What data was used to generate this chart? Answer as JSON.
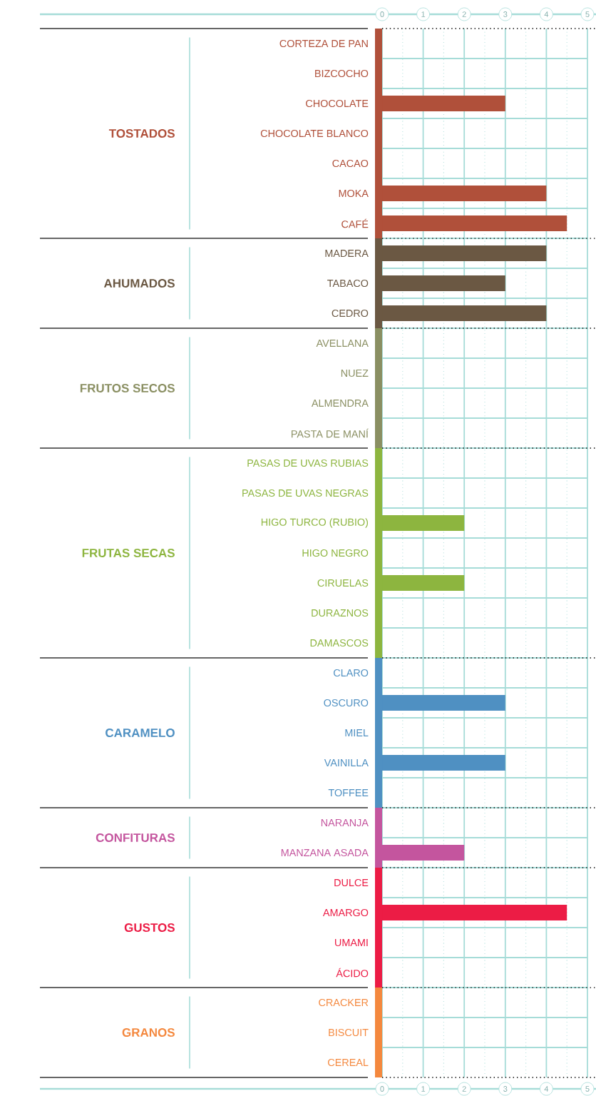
{
  "chart_data": {
    "type": "bar",
    "orientation": "horizontal",
    "categories": [
      "CORTEZA DE PAN",
      "BIZCOCHO",
      "CHOCOLATE",
      "CHOCOLATE BLANCO",
      "CACAO",
      "MOKA",
      "CAFÉ",
      "MADERA",
      "TABACO",
      "CEDRO",
      "AVELLANA",
      "NUEZ",
      "ALMENDRA",
      "PASTA DE MANÍ",
      "PASAS DE UVAS RUBIAS",
      "PASAS DE UVAS NEGRAS",
      "HIGO TURCO (RUBIO)",
      "HIGO NEGRO",
      "CIRUELAS",
      "DURAZNOS",
      "DAMASCOS",
      "CLARO",
      "OSCURO",
      "MIEL",
      "VAINILLA",
      "TOFFEE",
      "NARANJA",
      "MANZANA ASADA",
      "DULCE",
      "AMARGO",
      "UMAMI",
      "ÁCIDO",
      "CRACKER",
      "BISCUIT",
      "CEREAL"
    ],
    "values": [
      0,
      0,
      3,
      0,
      0,
      4,
      4.5,
      4,
      3,
      4,
      0,
      0,
      0,
      0,
      0,
      0,
      2,
      0,
      2,
      0,
      0,
      0,
      3,
      0,
      3,
      0,
      0,
      2,
      0,
      4.5,
      0,
      0,
      0,
      0,
      0
    ],
    "colors": [
      "#b0503a",
      "#b0503a",
      "#b0503a",
      "#b0503a",
      "#b0503a",
      "#b0503a",
      "#b0503a",
      "#6b5843",
      "#6b5843",
      "#6b5843",
      "#8a8f62",
      "#8a8f62",
      "#8a8f62",
      "#8a8f62",
      "#8db53f",
      "#8db53f",
      "#8db53f",
      "#8db53f",
      "#8db53f",
      "#8db53f",
      "#8db53f",
      "#4f90c2",
      "#4f90c2",
      "#4f90c2",
      "#4f90c2",
      "#4f90c2",
      "#c4559e",
      "#c4559e",
      "#ec1c45",
      "#ec1c45",
      "#ec1c45",
      "#ec1c45",
      "#f4883e",
      "#f4883e",
      "#f4883e"
    ],
    "annotations": [
      "TOSTADOS",
      "AHUMADOS",
      "FRUTOS SECOS",
      "FRUTAS SECAS",
      "CARAMELO",
      "CONFITURAS",
      "GUSTOS",
      "GRANOS"
    ],
    "xlim": [
      0,
      5
    ],
    "xticks": [
      0,
      {
        "value": 0.5,
        "label": null
      },
      1,
      {
        "value": 1.5,
        "label": null
      },
      2,
      {
        "value": 2.5,
        "label": null
      },
      3,
      {
        "value": 3.5,
        "label": null
      },
      4,
      {
        "value": 4.5,
        "label": null
      },
      5
    ],
    "x2lim": [
      0,
      5
    ],
    "x2ticks": [
      0,
      1,
      2,
      3,
      4,
      5
    ],
    "grid": true
  }
}
